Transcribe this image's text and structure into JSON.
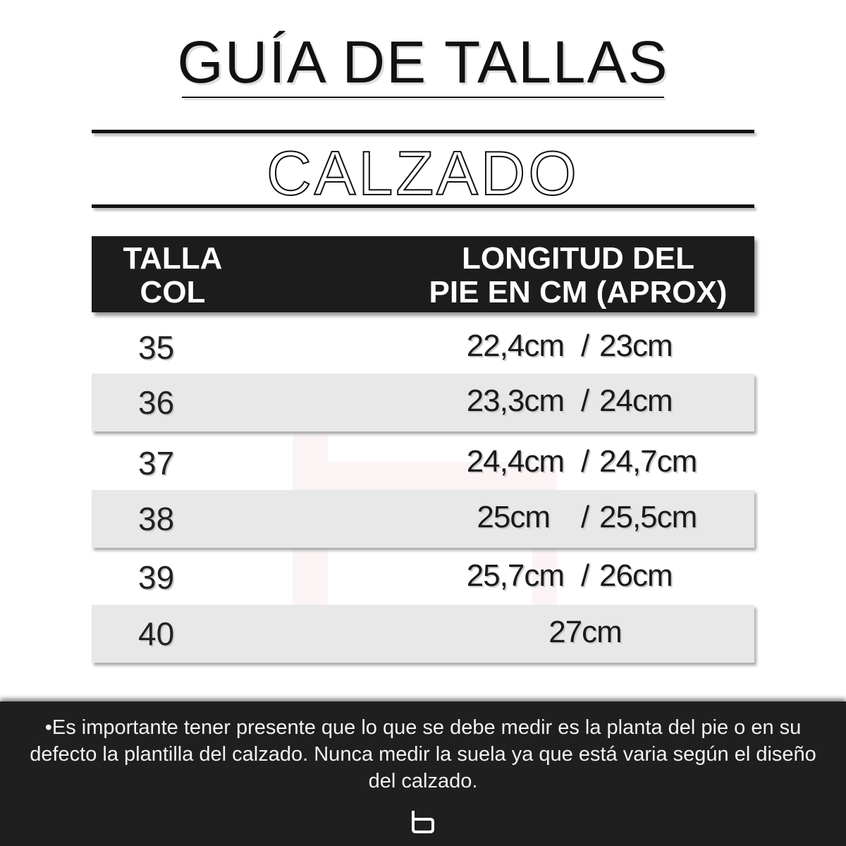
{
  "header": {
    "title": "GUÍA DE TALLAS",
    "subtitle": "CALZADO"
  },
  "table": {
    "columns": [
      "TALLA COL",
      "LONGITUD DEL PIE EN CM (APROX)"
    ],
    "column_lines": [
      [
        "TALLA",
        "COL"
      ],
      [
        "LONGITUD DEL",
        "PIE EN CM (APROX)"
      ]
    ],
    "rows": [
      {
        "size": "35",
        "min": "22,4cm",
        "sep": "/",
        "max": "23cm"
      },
      {
        "size": "36",
        "min": "23,3cm",
        "sep": "/",
        "max": "24cm"
      },
      {
        "size": "37",
        "min": "24,4cm",
        "sep": "/",
        "max": "24,7cm"
      },
      {
        "size": "38",
        "min": "25cm",
        "sep": "/",
        "max": "25,5cm"
      },
      {
        "size": "39",
        "min": "25,7cm",
        "sep": "/",
        "max": "26cm"
      },
      {
        "size": "40",
        "value": "27cm"
      }
    ]
  },
  "footer": {
    "bullet": "•",
    "note": "Es importante tener presente que lo que se debe medir es la planta del pie o en su defecto la plantilla del calzado. Nunca medir la suela ya que está varia según el diseño del calzado.",
    "logo": "b"
  },
  "colors": {
    "dark": "#1c1c1c",
    "band": "#e8e8e8",
    "footer": "#1f1f1f"
  }
}
